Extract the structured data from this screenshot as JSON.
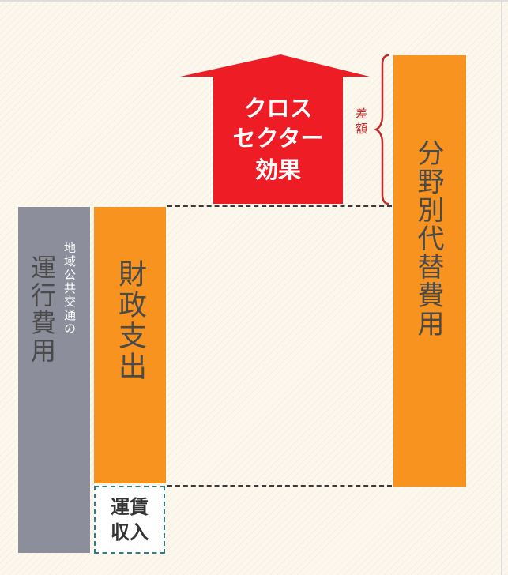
{
  "colors": {
    "gray_bar": "#8c8e9b",
    "orange_bar": "#f7931e",
    "arrow_red": "#ee1c25",
    "brace_red": "#c7292b",
    "fare_border": "#2a7f8a",
    "dash_line": "#3a3a3a",
    "background": "#fdf8ee"
  },
  "operating_cost": {
    "small_label": "地域公共交通の",
    "main_label": "運行費用"
  },
  "fiscal_spending": {
    "label": "財政支出"
  },
  "fare_revenue": {
    "line1": "運賃",
    "line2": "収入"
  },
  "cross_sector": {
    "line1": "クロス",
    "line2": "セクター",
    "line3": "効果"
  },
  "difference": {
    "label": "差額"
  },
  "alternative_cost": {
    "label": "分野別代替費用"
  }
}
